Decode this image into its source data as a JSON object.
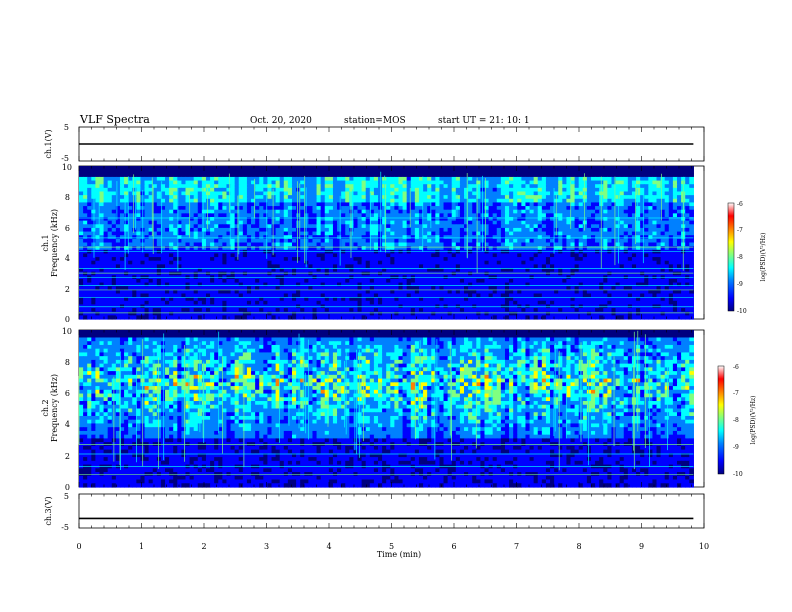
{
  "header": {
    "title": "VLF Spectra",
    "date": "Oct. 20, 2020",
    "station": "station=MOS",
    "start": "start  UT =   21: 10: 1"
  },
  "chart_data": [
    {
      "id": "ch1-waveform",
      "type": "line",
      "ylabel": "ch.1(V)",
      "ylim": [
        -5,
        5
      ],
      "yticks": [
        "5",
        "-5"
      ],
      "x": [
        0,
        9.83
      ],
      "values": [
        0,
        0
      ]
    },
    {
      "id": "ch1-spectrogram",
      "type": "heatmap",
      "ylabel_top": "ch.1",
      "ylabel": "Frequency (kHz)",
      "ylim": [
        0,
        10
      ],
      "yticks": [
        "0",
        "2",
        "4",
        "6",
        "8",
        "10"
      ],
      "xlim": [
        0,
        9.83
      ],
      "line_frequencies_khz": [
        0.4,
        0.8,
        1.4,
        1.9,
        2.2,
        2.7,
        3.0,
        3.3,
        4.4,
        4.7,
        5.3,
        6.6
      ],
      "colorbar": {
        "label": "log(PSD)(V²/Hz)",
        "ticks": [
          "-6",
          "-7",
          "-8",
          "-9",
          "-10"
        ],
        "range": [
          -10,
          -6
        ]
      }
    },
    {
      "id": "ch2-spectrogram",
      "type": "heatmap",
      "ylabel_top": "ch.2",
      "ylabel": "Frequency (kHz)",
      "ylim": [
        0,
        10
      ],
      "yticks": [
        "0",
        "2",
        "4",
        "6",
        "8",
        "10"
      ],
      "xlim": [
        0,
        9.83
      ],
      "line_frequencies_khz": [
        0.8,
        1.3,
        2.1,
        2.7
      ],
      "colorbar": {
        "label": "log(PSD)(V²/Hz)",
        "ticks": [
          "-6",
          "-7",
          "-8",
          "-9",
          "-10"
        ],
        "range": [
          -10,
          -6
        ]
      }
    },
    {
      "id": "ch3-waveform",
      "type": "line",
      "ylabel": "ch.3(V)",
      "ylim": [
        -5,
        5
      ],
      "yticks": [
        "5",
        "-5"
      ],
      "x": [
        0,
        9.83
      ],
      "values": [
        -2.2,
        -2.2
      ]
    }
  ],
  "xaxis": {
    "label": "Time (min)",
    "ticks": [
      "0",
      "1",
      "2",
      "3",
      "4",
      "5",
      "6",
      "7",
      "8",
      "9",
      "10"
    ],
    "range": [
      0,
      10
    ]
  },
  "colormap": [
    "#000080",
    "#0000ff",
    "#0080ff",
    "#00ffff",
    "#80ff80",
    "#ffff00",
    "#ff8000",
    "#ff0000",
    "#ffffff"
  ]
}
